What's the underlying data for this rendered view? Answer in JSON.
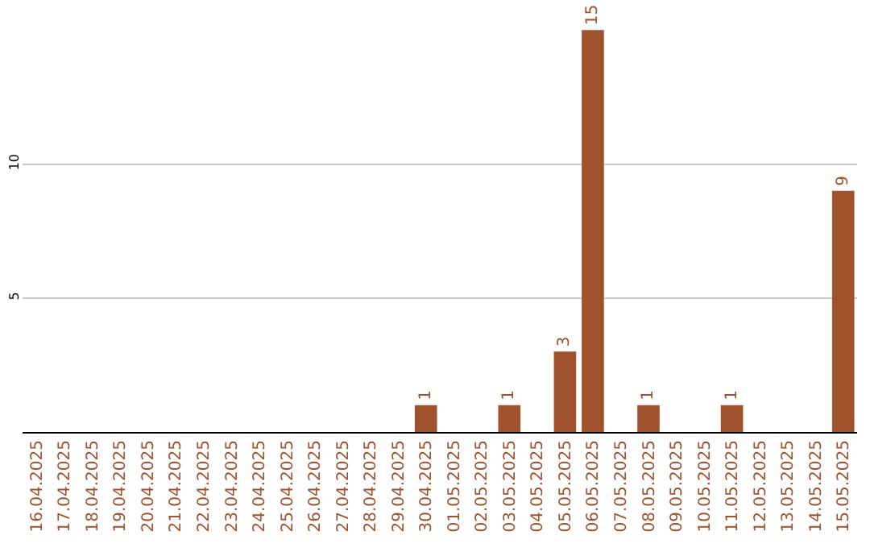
{
  "chart_data": {
    "type": "bar",
    "categories": [
      "16.04.2025",
      "17.04.2025",
      "18.04.2025",
      "19.04.2025",
      "20.04.2025",
      "21.04.2025",
      "22.04.2025",
      "23.04.2025",
      "24.04.2025",
      "25.04.2025",
      "26.04.2025",
      "27.04.2025",
      "28.04.2025",
      "29.04.2025",
      "30.04.2025",
      "01.05.2025",
      "02.05.2025",
      "03.05.2025",
      "04.05.2025",
      "05.05.2025",
      "06.05.2025",
      "07.05.2025",
      "08.05.2025",
      "09.05.2025",
      "10.05.2025",
      "11.05.2025",
      "12.05.2025",
      "13.05.2025",
      "14.05.2025",
      "15.05.2025"
    ],
    "values": [
      0,
      0,
      0,
      0,
      0,
      0,
      0,
      0,
      0,
      0,
      0,
      0,
      0,
      0,
      1,
      0,
      0,
      1,
      0,
      3,
      15,
      0,
      1,
      0,
      0,
      1,
      0,
      0,
      0,
      9
    ],
    "value_labels": [
      null,
      null,
      null,
      null,
      null,
      null,
      null,
      null,
      null,
      null,
      null,
      null,
      null,
      null,
      "1",
      null,
      null,
      "1",
      null,
      "3",
      "15",
      null,
      "1",
      null,
      null,
      "1",
      null,
      null,
      null,
      "9"
    ],
    "color": "#a0522d",
    "ylim": [
      0,
      16
    ],
    "yticks": [
      5,
      10
    ],
    "grid": "y",
    "legend": false
  }
}
